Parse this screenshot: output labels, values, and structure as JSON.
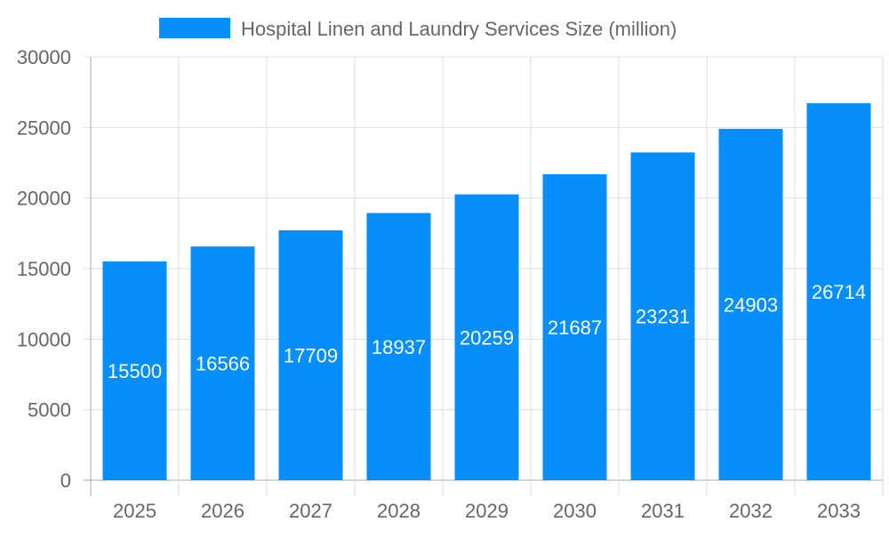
{
  "chart_data": {
    "type": "bar",
    "categories": [
      "2025",
      "2026",
      "2027",
      "2028",
      "2029",
      "2030",
      "2031",
      "2032",
      "2033"
    ],
    "series": [
      {
        "name": "Hospital Linen and Laundry Services Size (million)",
        "values": [
          15500,
          16566,
          17709,
          18937,
          20259,
          21687,
          23231,
          24903,
          26714
        ],
        "color": "#068ffb"
      }
    ],
    "ylim": [
      0,
      30000
    ],
    "yticks": [
      0,
      5000,
      10000,
      15000,
      20000,
      25000,
      30000
    ],
    "grid": true,
    "legend": "top-center",
    "data_labels": true
  }
}
